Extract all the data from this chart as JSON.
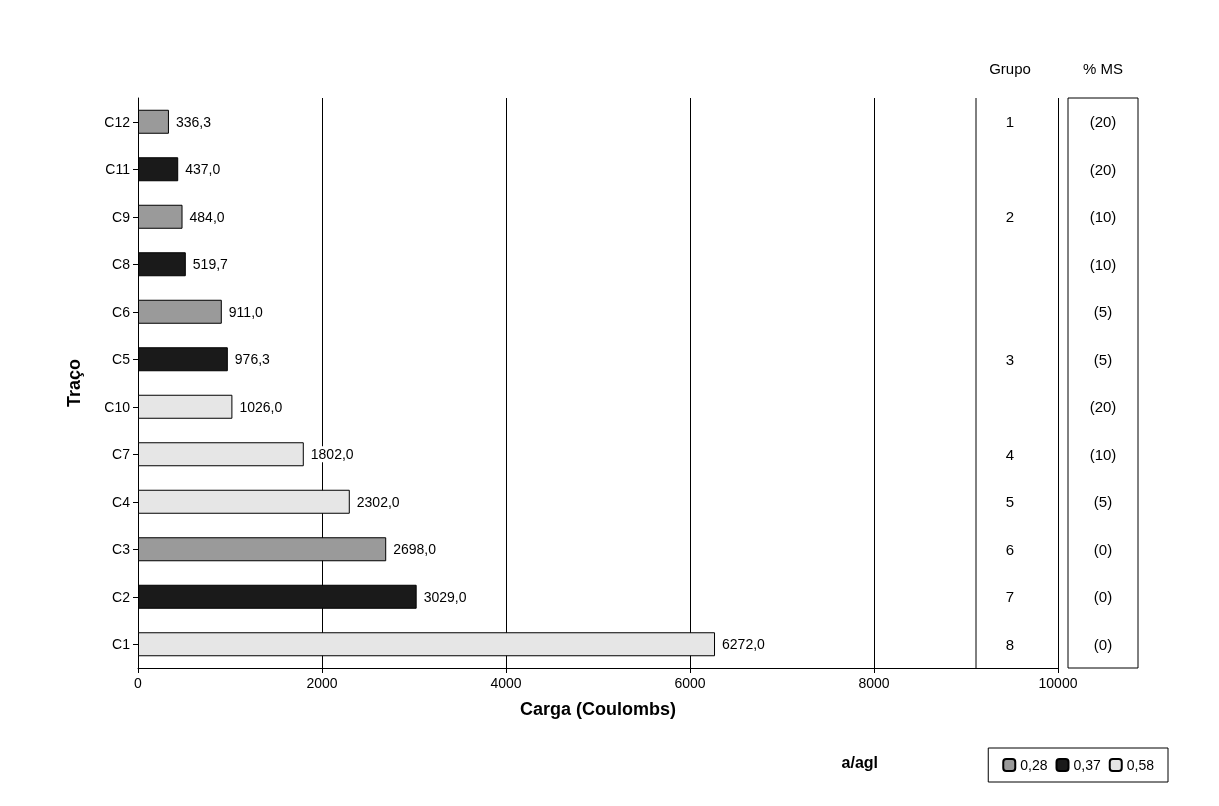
{
  "chart_data": {
    "type": "bar",
    "orientation": "horizontal",
    "xlabel": "Carga (Coulombs)",
    "ylabel": "Traço",
    "legend_title": "a/agl",
    "categories": [
      "C12",
      "C11",
      "C9",
      "C8",
      "C6",
      "C5",
      "C10",
      "C7",
      "C4",
      "C3",
      "C2",
      "C1"
    ],
    "series": [
      {
        "name": "0,28",
        "color": "#9a9a9a",
        "values": [
          336.3,
          null,
          484.0,
          null,
          911.0,
          null,
          null,
          null,
          null,
          2698.0,
          null,
          null
        ],
        "value_labels": [
          "336,3",
          null,
          "484,0",
          null,
          "911,0",
          null,
          null,
          null,
          null,
          "2698,0",
          null,
          null
        ]
      },
      {
        "name": "0,37",
        "color": "#1a1a1a",
        "values": [
          null,
          437.0,
          null,
          519.7,
          null,
          976.3,
          null,
          null,
          null,
          null,
          3029.0,
          null
        ],
        "value_labels": [
          null,
          "437,0",
          null,
          "519,7",
          null,
          "976,3",
          null,
          null,
          null,
          null,
          "3029,0",
          null
        ]
      },
      {
        "name": "0,58",
        "color": "#e6e6e6",
        "values": [
          null,
          null,
          null,
          null,
          null,
          null,
          1026.0,
          1802.0,
          2302.0,
          null,
          null,
          6272.0
        ],
        "value_labels": [
          null,
          null,
          null,
          null,
          null,
          null,
          "1026,0",
          "1802,0",
          "2302,0",
          null,
          null,
          "6272,0"
        ]
      }
    ],
    "xlim": [
      0,
      10000
    ],
    "xticks": [
      0,
      2000,
      4000,
      6000,
      8000,
      10000
    ],
    "grid": "x",
    "legend": "bottom right",
    "annotations": [
      "Grupo",
      "% MS",
      "1",
      "2",
      "3",
      "4",
      "5",
      "6",
      "7",
      "8",
      "(20)",
      "(20)",
      "(10)",
      "(10)",
      "(5)",
      "(5)",
      "(20)",
      "(10)",
      "(5)",
      "(0)",
      "(0)",
      "(0)"
    ]
  }
}
